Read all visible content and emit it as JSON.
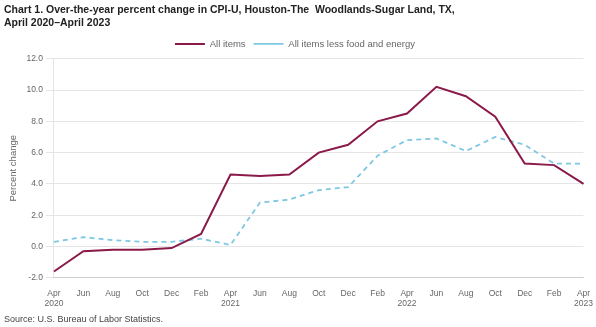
{
  "chart_data": {
    "type": "line",
    "title": [
      "Chart 1. Over-the-year percent change in CPI-U, Houston-The  Woodlands-Sugar Land, TX,",
      "April 2020–April 2023"
    ],
    "ylabel": "Percent change",
    "source": "Source: U.S. Bureau of Labor Statistics.",
    "categories": [
      "Apr\n2020",
      "Jun",
      "Aug",
      "Oct",
      "Dec",
      "Feb",
      "Apr\n2021",
      "Jun",
      "Aug",
      "Oct",
      "Dec",
      "Feb",
      "Apr\n2022",
      "Jun",
      "Aug",
      "Oct",
      "Dec",
      "Feb",
      "Apr\n2023"
    ],
    "series": [
      {
        "name": "All items",
        "color": "#8B1A4A",
        "line_style": "solid",
        "values": [
          -1.6,
          -0.3,
          -0.2,
          -0.2,
          -0.1,
          0.8,
          4.6,
          4.5,
          4.6,
          6.0,
          6.5,
          8.0,
          8.5,
          10.2,
          9.6,
          8.3,
          5.3,
          5.2,
          4.0
        ]
      },
      {
        "name": "All items less food and energy",
        "color": "#7EC8E3",
        "line_style": "dashed",
        "values": [
          0.3,
          0.6,
          0.4,
          0.3,
          0.3,
          0.5,
          0.1,
          2.8,
          3.0,
          3.6,
          3.8,
          5.8,
          6.8,
          6.9,
          6.1,
          7.0,
          6.5,
          5.3,
          5.3
        ]
      }
    ],
    "ylim": [
      -2.0,
      12.0
    ],
    "yticks": [
      {
        "value": -2.0,
        "label": "-2.0"
      },
      {
        "value": 0.0,
        "label": "0.0"
      },
      {
        "value": 2.0,
        "label": "2.0"
      },
      {
        "value": 4.0,
        "label": "4.0"
      },
      {
        "value": 6.0,
        "label": "6.0"
      },
      {
        "value": 8.0,
        "label": "8.0"
      },
      {
        "value": 10.0,
        "label": "10.0"
      },
      {
        "value": 12.0,
        "label": "12.0"
      }
    ],
    "grid": true,
    "legend": "top"
  }
}
